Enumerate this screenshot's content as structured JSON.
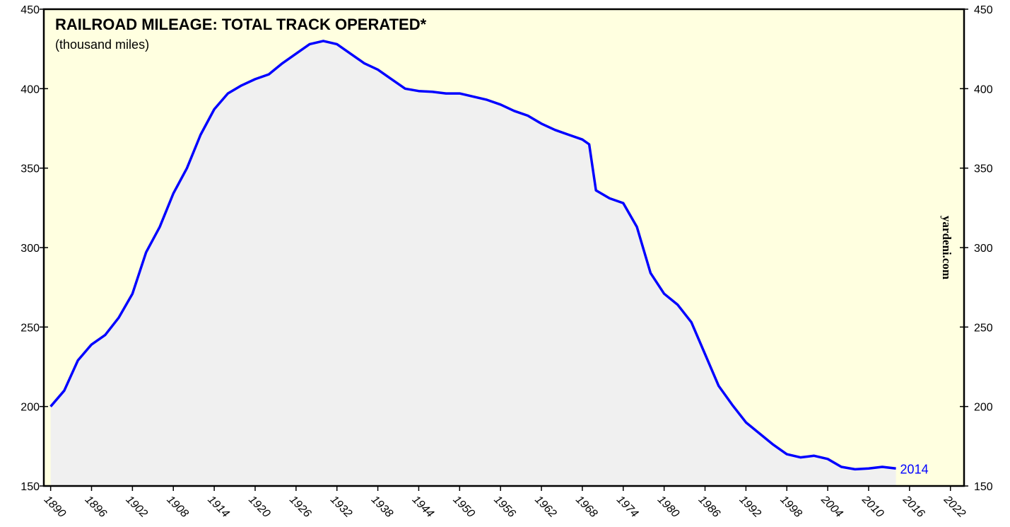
{
  "chart_data": {
    "type": "line",
    "title": "RAILROAD MILEAGE: TOTAL TRACK OPERATED*",
    "subtitle": "(thousand miles)",
    "watermark": "yardeni.com",
    "annotation": "2014",
    "x": [
      1890,
      1892,
      1894,
      1896,
      1898,
      1900,
      1902,
      1904,
      1906,
      1908,
      1910,
      1912,
      1914,
      1916,
      1918,
      1920,
      1922,
      1924,
      1926,
      1928,
      1930,
      1932,
      1934,
      1936,
      1938,
      1940,
      1942,
      1944,
      1946,
      1948,
      1950,
      1952,
      1954,
      1956,
      1958,
      1960,
      1962,
      1964,
      1966,
      1968,
      1969,
      1970,
      1972,
      1974,
      1976,
      1978,
      1980,
      1982,
      1984,
      1986,
      1988,
      1990,
      1992,
      1994,
      1996,
      1998,
      2000,
      2002,
      2004,
      2006,
      2008,
      2010,
      2012,
      2014
    ],
    "series": [
      {
        "name": "Total track operated",
        "color": "#0000ff",
        "values": [
          200,
          210,
          229,
          239,
          245,
          256,
          271,
          297,
          313,
          334,
          350,
          371,
          387,
          397,
          402,
          406,
          409,
          416,
          422,
          428,
          430,
          428,
          422,
          416,
          412,
          406,
          400,
          398.5,
          398,
          397,
          397,
          395,
          393,
          390,
          386,
          383,
          378,
          374,
          371,
          368,
          365,
          336,
          331,
          328,
          313,
          284,
          271,
          264,
          253,
          233,
          213,
          201,
          190,
          183,
          176,
          170,
          168,
          169,
          167,
          162,
          160.5,
          161,
          162,
          161
        ]
      }
    ],
    "xlim": [
      1889,
      2024
    ],
    "xticks": [
      1890,
      1896,
      1902,
      1908,
      1914,
      1920,
      1926,
      1932,
      1938,
      1944,
      1950,
      1956,
      1962,
      1968,
      1974,
      1980,
      1986,
      1992,
      1998,
      2004,
      2010,
      2016,
      2022
    ],
    "ylim": [
      150,
      450
    ],
    "yticks": [
      150,
      200,
      250,
      300,
      350,
      400,
      450
    ],
    "fill_color": "#f0f0f0",
    "background": "#ffffe0"
  }
}
